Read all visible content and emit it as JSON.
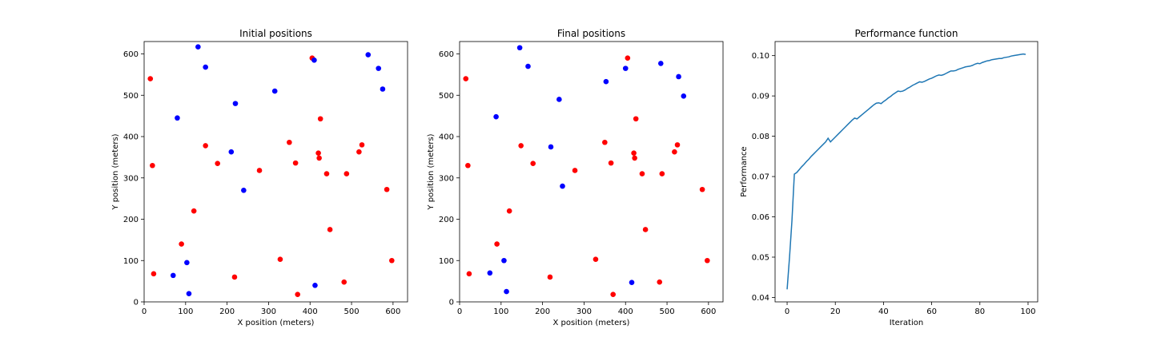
{
  "colors": {
    "red_points": "#ff0000",
    "blue_points": "#0000ff",
    "line": "#1f77b4",
    "overlap_point": "#800080"
  },
  "chart_data": [
    {
      "type": "scatter",
      "title": "Initial positions",
      "xlabel": "X position (meters)",
      "ylabel": "Y position (meters)",
      "xlim": [
        0,
        635
      ],
      "ylim": [
        0,
        630
      ],
      "xticks": [
        0,
        100,
        200,
        300,
        400,
        500,
        600
      ],
      "yticks": [
        0,
        100,
        200,
        300,
        400,
        500,
        600
      ],
      "series": [
        {
          "color": "#ff0000",
          "x": [
            15,
            20,
            23,
            90,
            120,
            148,
            177,
            218,
            278,
            328,
            350,
            365,
            370,
            405,
            420,
            422,
            425,
            440,
            448,
            482,
            488,
            518,
            525,
            585,
            597
          ],
          "y": [
            540,
            330,
            68,
            140,
            220,
            378,
            335,
            60,
            318,
            103,
            386,
            336,
            18,
            590,
            360,
            348,
            443,
            310,
            175,
            48,
            310,
            363,
            380,
            272,
            100
          ]
        },
        {
          "color": "#0000ff",
          "x": [
            70,
            80,
            103,
            108,
            130,
            148,
            210,
            220,
            240,
            315,
            410,
            412,
            540,
            565,
            575
          ],
          "y": [
            64,
            445,
            95,
            20,
            617,
            568,
            363,
            480,
            270,
            510,
            585,
            40,
            598,
            565,
            515
          ]
        }
      ]
    },
    {
      "type": "scatter",
      "title": "Final positions",
      "xlabel": "X position (meters)",
      "ylabel": "Y position (meters)",
      "xlim": [
        0,
        635
      ],
      "ylim": [
        0,
        630
      ],
      "xticks": [
        0,
        100,
        200,
        300,
        400,
        500,
        600
      ],
      "yticks": [
        0,
        100,
        200,
        300,
        400,
        500,
        600
      ],
      "series": [
        {
          "color": "#ff0000",
          "x": [
            15,
            20,
            23,
            90,
            120,
            148,
            177,
            218,
            278,
            328,
            350,
            365,
            370,
            405,
            420,
            422,
            425,
            440,
            448,
            482,
            488,
            518,
            525,
            585,
            597
          ],
          "y": [
            540,
            330,
            68,
            140,
            220,
            378,
            335,
            60,
            318,
            103,
            386,
            336,
            18,
            590,
            360,
            348,
            443,
            310,
            175,
            48,
            310,
            363,
            380,
            272,
            100
          ]
        },
        {
          "color": "#0000ff",
          "x": [
            73,
            88,
            107,
            113,
            145,
            165,
            220,
            240,
            248,
            353,
            400,
            415,
            485,
            528,
            540
          ],
          "y": [
            70,
            448,
            100,
            25,
            615,
            570,
            375,
            490,
            280,
            533,
            565,
            47,
            577,
            545,
            498
          ]
        }
      ]
    },
    {
      "type": "line",
      "title": "Performance function",
      "xlabel": "Iteration",
      "ylabel": "Performance",
      "xlim": [
        -5,
        104
      ],
      "ylim": [
        0.0389,
        0.1035
      ],
      "xticks": [
        0,
        20,
        40,
        60,
        80,
        100
      ],
      "yticks": [
        0.04,
        0.05,
        0.06,
        0.07,
        0.08,
        0.09,
        0.1
      ],
      "ytick_labels": [
        "0.04",
        "0.05",
        "0.06",
        "0.07",
        "0.08",
        "0.09",
        "0.10"
      ],
      "series": [
        {
          "color": "#1f77b4",
          "x": [
            0,
            1,
            2,
            3,
            4,
            5,
            6,
            7,
            8,
            9,
            10,
            11,
            12,
            13,
            14,
            15,
            16,
            17,
            18,
            19,
            20,
            21,
            22,
            23,
            24,
            25,
            26,
            27,
            28,
            29,
            30,
            31,
            32,
            33,
            34,
            35,
            36,
            37,
            38,
            39,
            40,
            41,
            42,
            43,
            44,
            45,
            46,
            47,
            48,
            49,
            50,
            51,
            52,
            53,
            54,
            55,
            56,
            57,
            58,
            59,
            60,
            61,
            62,
            63,
            64,
            65,
            66,
            67,
            68,
            69,
            70,
            71,
            72,
            73,
            74,
            75,
            76,
            77,
            78,
            79,
            80,
            81,
            82,
            83,
            84,
            85,
            86,
            87,
            88,
            89,
            90,
            91,
            92,
            93,
            94,
            95,
            96,
            97,
            98,
            99
          ],
          "y": [
            0.042,
            0.05,
            0.059,
            0.0706,
            0.071,
            0.0717,
            0.0724,
            0.073,
            0.0737,
            0.0743,
            0.075,
            0.0756,
            0.0762,
            0.0768,
            0.0774,
            0.078,
            0.0786,
            0.0795,
            0.0786,
            0.0792,
            0.0798,
            0.0804,
            0.081,
            0.0816,
            0.0822,
            0.0828,
            0.0834,
            0.084,
            0.0845,
            0.0843,
            0.0848,
            0.0853,
            0.0858,
            0.0863,
            0.0868,
            0.0873,
            0.0878,
            0.0882,
            0.0883,
            0.0881,
            0.0886,
            0.089,
            0.0895,
            0.0899,
            0.0904,
            0.0908,
            0.0912,
            0.0911,
            0.0912,
            0.0915,
            0.0919,
            0.0922,
            0.0926,
            0.0929,
            0.0932,
            0.0935,
            0.0934,
            0.0936,
            0.0939,
            0.0942,
            0.0944,
            0.0947,
            0.095,
            0.0952,
            0.0951,
            0.0953,
            0.0956,
            0.0959,
            0.0962,
            0.0962,
            0.0963,
            0.0966,
            0.0968,
            0.097,
            0.0972,
            0.0973,
            0.0974,
            0.0976,
            0.0979,
            0.0981,
            0.098,
            0.0983,
            0.0985,
            0.0987,
            0.0988,
            0.099,
            0.0991,
            0.0992,
            0.0993,
            0.0993,
            0.0995,
            0.0996,
            0.0997,
            0.0999,
            0.1,
            0.1001,
            0.1002,
            0.1003,
            0.1004,
            0.1003
          ]
        }
      ]
    }
  ]
}
